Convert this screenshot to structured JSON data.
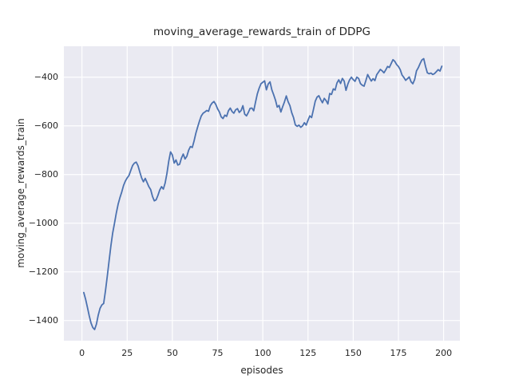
{
  "chart_data": {
    "type": "line",
    "title": "moving_average_rewards_train of DDPG",
    "xlabel": "episodes",
    "ylabel": "moving_average_rewards_train",
    "xlim": [
      -10,
      209
    ],
    "ylim": [
      -1483,
      -273
    ],
    "grid": true,
    "legend": "none",
    "colors": {
      "line": "#4c72b0",
      "plot_background": "#eaeaf2",
      "grid_line": "#ffffff",
      "text": "#262626",
      "figure_background": "#ffffff"
    },
    "xticks": [
      0,
      25,
      50,
      75,
      100,
      125,
      150,
      175,
      200
    ],
    "xtick_labels": [
      "0",
      "25",
      "50",
      "75",
      "100",
      "125",
      "150",
      "175",
      "200"
    ],
    "yticks": [
      -400,
      -600,
      -800,
      -1000,
      -1200,
      -1400
    ],
    "ytick_labels": [
      "−400",
      "−600",
      "−800",
      "−1000",
      "−1200",
      "−1400"
    ],
    "series": [
      {
        "name": "moving_average_rewards_train",
        "x_start": 1,
        "x_step": 1,
        "y": [
          -1285,
          -1312,
          -1345,
          -1380,
          -1410,
          -1429,
          -1437,
          -1415,
          -1378,
          -1350,
          -1336,
          -1330,
          -1278,
          -1218,
          -1155,
          -1093,
          -1040,
          -1000,
          -958,
          -922,
          -895,
          -872,
          -845,
          -827,
          -814,
          -804,
          -783,
          -763,
          -753,
          -749,
          -764,
          -790,
          -814,
          -830,
          -816,
          -833,
          -850,
          -862,
          -890,
          -908,
          -904,
          -886,
          -864,
          -850,
          -860,
          -835,
          -795,
          -745,
          -707,
          -720,
          -753,
          -740,
          -761,
          -758,
          -733,
          -716,
          -736,
          -725,
          -700,
          -685,
          -689,
          -662,
          -630,
          -604,
          -580,
          -559,
          -548,
          -543,
          -537,
          -540,
          -517,
          -506,
          -500,
          -512,
          -530,
          -543,
          -563,
          -570,
          -556,
          -561,
          -538,
          -527,
          -541,
          -548,
          -534,
          -529,
          -545,
          -537,
          -517,
          -552,
          -559,
          -545,
          -528,
          -527,
          -538,
          -502,
          -468,
          -445,
          -427,
          -421,
          -415,
          -452,
          -428,
          -419,
          -452,
          -472,
          -494,
          -523,
          -516,
          -543,
          -521,
          -501,
          -477,
          -501,
          -517,
          -546,
          -566,
          -596,
          -602,
          -597,
          -606,
          -600,
          -587,
          -597,
          -577,
          -559,
          -566,
          -533,
          -499,
          -482,
          -476,
          -492,
          -505,
          -487,
          -496,
          -510,
          -467,
          -471,
          -448,
          -453,
          -424,
          -411,
          -426,
          -405,
          -416,
          -454,
          -429,
          -411,
          -400,
          -410,
          -417,
          -400,
          -405,
          -426,
          -433,
          -437,
          -414,
          -389,
          -403,
          -416,
          -406,
          -414,
          -390,
          -379,
          -368,
          -374,
          -382,
          -370,
          -356,
          -360,
          -344,
          -328,
          -335,
          -348,
          -356,
          -369,
          -391,
          -401,
          -413,
          -406,
          -399,
          -419,
          -427,
          -409,
          -374,
          -361,
          -344,
          -329,
          -324,
          -356,
          -382,
          -386,
          -383,
          -389,
          -385,
          -377,
          -369,
          -375,
          -355
        ]
      }
    ]
  }
}
